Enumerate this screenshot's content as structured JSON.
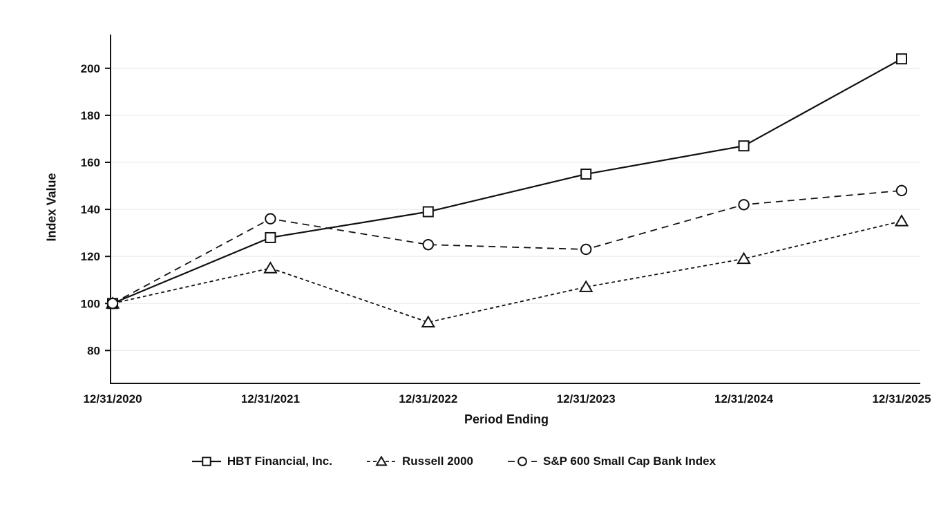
{
  "chart_data": {
    "type": "line",
    "title": "",
    "xlabel": "Period Ending",
    "ylabel": "Index Value",
    "categories": [
      "12/31/2020",
      "12/31/2021",
      "12/31/2022",
      "12/31/2023",
      "12/31/2024",
      "12/31/2025"
    ],
    "ylim": [
      66,
      212
    ],
    "yticks": [
      80,
      100,
      120,
      140,
      160,
      180,
      200
    ],
    "grid": true,
    "legend_position": "bottom",
    "series": [
      {
        "name": "HBT Financial, Inc.",
        "marker": "square",
        "dash": "solid",
        "values": [
          100,
          128,
          139,
          155,
          167,
          204
        ]
      },
      {
        "name": "Russell 2000",
        "marker": "triangle",
        "dash": "short",
        "values": [
          100,
          115,
          92,
          107,
          119,
          135
        ]
      },
      {
        "name": "S&P 600 Small Cap Bank Index",
        "marker": "circle",
        "dash": "long",
        "values": [
          100,
          136,
          125,
          123,
          142,
          148
        ]
      }
    ]
  },
  "colors": {
    "line": "#111111",
    "grid": "#e8e8e8",
    "background": "#ffffff",
    "marker_fill": "#ffffff"
  }
}
